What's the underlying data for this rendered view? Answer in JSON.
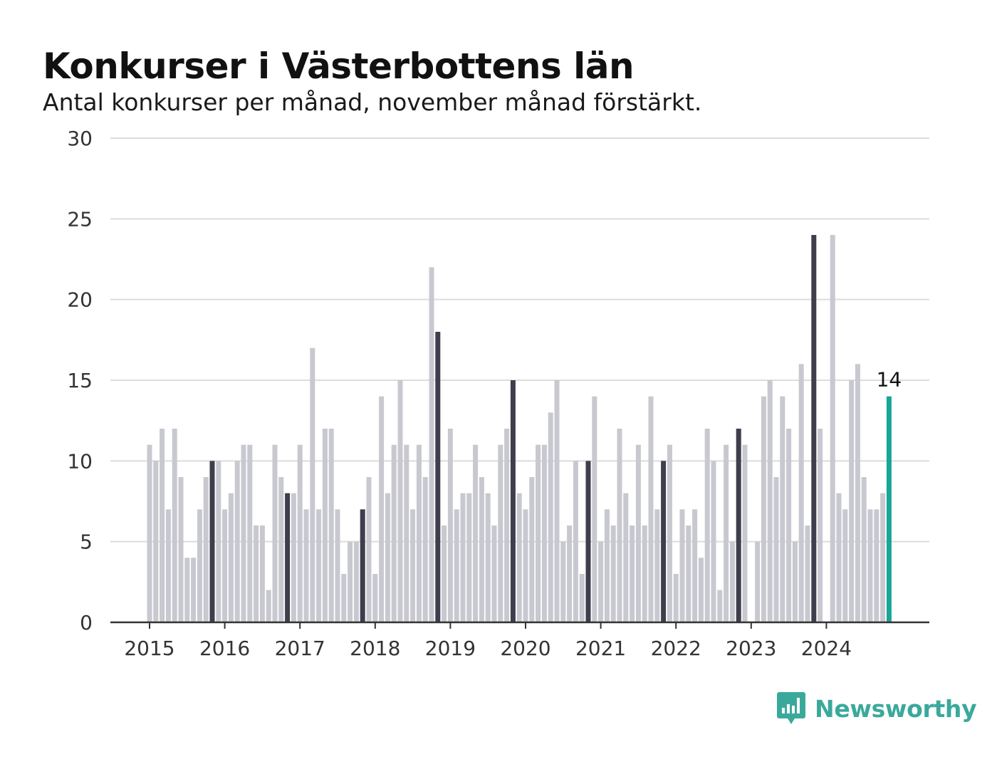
{
  "title": "Konkurser i Västerbottens län",
  "subtitle": "Antal konkurser per månad, november månad förstärkt.",
  "brand": {
    "name": "Newsworthy",
    "icon": "newsworthy-logo-icon",
    "color": "#3aa99c"
  },
  "colors": {
    "normal": "#c8c8d0",
    "november": "#3e3e4c",
    "latest": "#17a597",
    "grid": "#dcdcdc",
    "axis": "#333333"
  },
  "chart_data": {
    "type": "bar",
    "title": "Konkurser i Västerbottens län",
    "subtitle": "Antal konkurser per månad, november månad förstärkt.",
    "xlabel": "",
    "ylabel": "",
    "ylim": [
      0,
      30
    ],
    "yticks": [
      0,
      5,
      10,
      15,
      20,
      25,
      30
    ],
    "xtick_labels": [
      "2015",
      "2016",
      "2017",
      "2018",
      "2019",
      "2020",
      "2021",
      "2022",
      "2023",
      "2024"
    ],
    "grid": true,
    "start": "2015-01",
    "end": "2024-11",
    "highlight": "november",
    "annotations": [
      {
        "month": "2024-11",
        "text": "14"
      }
    ],
    "values": [
      11,
      10,
      12,
      7,
      12,
      9,
      4,
      4,
      7,
      9,
      10,
      10,
      7,
      8,
      10,
      11,
      11,
      6,
      6,
      2,
      11,
      9,
      8,
      8,
      11,
      7,
      17,
      7,
      12,
      12,
      7,
      3,
      5,
      5,
      7,
      9,
      3,
      14,
      8,
      11,
      15,
      11,
      7,
      11,
      9,
      22,
      18,
      6,
      12,
      7,
      8,
      8,
      11,
      9,
      8,
      6,
      11,
      12,
      15,
      8,
      7,
      9,
      11,
      11,
      13,
      15,
      5,
      6,
      10,
      3,
      10,
      14,
      5,
      7,
      6,
      12,
      8,
      6,
      11,
      6,
      14,
      7,
      10,
      11,
      3,
      7,
      6,
      7,
      4,
      12,
      10,
      2,
      11,
      5,
      12,
      11,
      0,
      5,
      14,
      15,
      9,
      14,
      12,
      5,
      16,
      6,
      24,
      12,
      0,
      24,
      8,
      7,
      15,
      16,
      9,
      7,
      7,
      8,
      14
    ]
  }
}
